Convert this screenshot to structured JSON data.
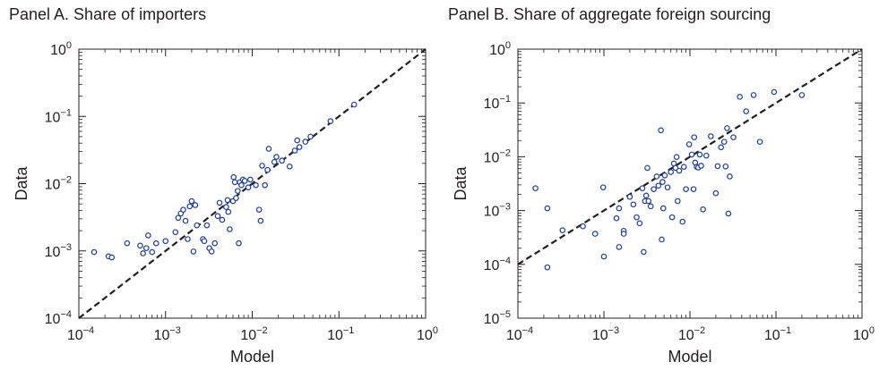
{
  "chart_data": [
    {
      "type": "scatter",
      "title": "Panel A. Share of importers",
      "xlabel": "Model",
      "ylabel": "Data",
      "xscale": "log",
      "yscale": "log",
      "xlim": [
        0.0001,
        1
      ],
      "ylim": [
        0.0001,
        1
      ],
      "xticks": [
        {
          "base": "10",
          "exp": "−4"
        },
        {
          "base": "10",
          "exp": "−3"
        },
        {
          "base": "10",
          "exp": "−2"
        },
        {
          "base": "10",
          "exp": "−1"
        },
        {
          "base": "10",
          "exp": "0"
        }
      ],
      "yticks": [
        {
          "base": "10",
          "exp": "−4"
        },
        {
          "base": "10",
          "exp": "−3"
        },
        {
          "base": "10",
          "exp": "−2"
        },
        {
          "base": "10",
          "exp": "−1"
        },
        {
          "base": "10",
          "exp": "0"
        }
      ],
      "reference_line": {
        "style": "dashed",
        "from": [
          0.0001,
          0.0001
        ],
        "to": [
          1,
          1
        ]
      },
      "marker_color": "#1f3f9a",
      "line_color": "#231f20",
      "points": [
        {
          "x": 0.00015,
          "y": 0.00096
        },
        {
          "x": 0.00022,
          "y": 0.00083
        },
        {
          "x": 0.00024,
          "y": 0.0008
        },
        {
          "x": 0.00036,
          "y": 0.0013
        },
        {
          "x": 0.00051,
          "y": 0.0012
        },
        {
          "x": 0.00055,
          "y": 0.00092
        },
        {
          "x": 0.0006,
          "y": 0.0011
        },
        {
          "x": 0.00063,
          "y": 0.0017
        },
        {
          "x": 0.0007,
          "y": 0.00096
        },
        {
          "x": 0.00078,
          "y": 0.0013
        },
        {
          "x": 0.001,
          "y": 0.0014
        },
        {
          "x": 0.0013,
          "y": 0.0019
        },
        {
          "x": 0.0014,
          "y": 0.0031
        },
        {
          "x": 0.0015,
          "y": 0.0036
        },
        {
          "x": 0.0016,
          "y": 0.0041
        },
        {
          "x": 0.0017,
          "y": 0.0028
        },
        {
          "x": 0.0018,
          "y": 0.0015
        },
        {
          "x": 0.0019,
          "y": 0.0046
        },
        {
          "x": 0.002,
          "y": 0.0055
        },
        {
          "x": 0.0021,
          "y": 0.00098
        },
        {
          "x": 0.0022,
          "y": 0.0048
        },
        {
          "x": 0.0023,
          "y": 0.0024
        },
        {
          "x": 0.0027,
          "y": 0.0015
        },
        {
          "x": 0.0028,
          "y": 0.0014
        },
        {
          "x": 0.003,
          "y": 0.0024
        },
        {
          "x": 0.0032,
          "y": 0.0011
        },
        {
          "x": 0.0034,
          "y": 0.00098
        },
        {
          "x": 0.0037,
          "y": 0.0013
        },
        {
          "x": 0.004,
          "y": 0.0033
        },
        {
          "x": 0.0042,
          "y": 0.0052
        },
        {
          "x": 0.0045,
          "y": 0.0029
        },
        {
          "x": 0.005,
          "y": 0.0045
        },
        {
          "x": 0.0052,
          "y": 0.0057
        },
        {
          "x": 0.0053,
          "y": 0.0038
        },
        {
          "x": 0.0055,
          "y": 0.0021
        },
        {
          "x": 0.006,
          "y": 0.0055
        },
        {
          "x": 0.0061,
          "y": 0.0125
        },
        {
          "x": 0.0063,
          "y": 0.0105
        },
        {
          "x": 0.0065,
          "y": 0.0061
        },
        {
          "x": 0.0068,
          "y": 0.0078
        },
        {
          "x": 0.007,
          "y": 0.0013
        },
        {
          "x": 0.0072,
          "y": 0.0105
        },
        {
          "x": 0.0075,
          "y": 0.0095
        },
        {
          "x": 0.0078,
          "y": 0.0115
        },
        {
          "x": 0.0082,
          "y": 0.011
        },
        {
          "x": 0.009,
          "y": 0.0088
        },
        {
          "x": 0.0095,
          "y": 0.0115
        },
        {
          "x": 0.011,
          "y": 0.0095
        },
        {
          "x": 0.012,
          "y": 0.0041
        },
        {
          "x": 0.0125,
          "y": 0.0028
        },
        {
          "x": 0.013,
          "y": 0.0185
        },
        {
          "x": 0.014,
          "y": 0.0095
        },
        {
          "x": 0.015,
          "y": 0.016
        },
        {
          "x": 0.0155,
          "y": 0.033
        },
        {
          "x": 0.018,
          "y": 0.021
        },
        {
          "x": 0.019,
          "y": 0.025
        },
        {
          "x": 0.022,
          "y": 0.022
        },
        {
          "x": 0.027,
          "y": 0.018
        },
        {
          "x": 0.031,
          "y": 0.031
        },
        {
          "x": 0.033,
          "y": 0.044
        },
        {
          "x": 0.035,
          "y": 0.035
        },
        {
          "x": 0.041,
          "y": 0.042
        },
        {
          "x": 0.047,
          "y": 0.05
        },
        {
          "x": 0.08,
          "y": 0.085
        },
        {
          "x": 0.15,
          "y": 0.15
        }
      ]
    },
    {
      "type": "scatter",
      "title": "Panel B. Share of aggregate foreign sourcing",
      "xlabel": "Model",
      "ylabel": "Data",
      "xscale": "log",
      "yscale": "log",
      "xlim": [
        0.0001,
        1
      ],
      "ylim": [
        1e-05,
        1
      ],
      "xticks": [
        {
          "base": "10",
          "exp": "−4"
        },
        {
          "base": "10",
          "exp": "−3"
        },
        {
          "base": "10",
          "exp": "−2"
        },
        {
          "base": "10",
          "exp": "−1"
        },
        {
          "base": "10",
          "exp": "0"
        }
      ],
      "yticks": [
        {
          "base": "10",
          "exp": "−5"
        },
        {
          "base": "10",
          "exp": "−4"
        },
        {
          "base": "10",
          "exp": "−3"
        },
        {
          "base": "10",
          "exp": "−2"
        },
        {
          "base": "10",
          "exp": "−1"
        },
        {
          "base": "10",
          "exp": "0"
        }
      ],
      "reference_line": {
        "style": "dashed",
        "from": [
          0.0001,
          0.0001
        ],
        "to": [
          1,
          1
        ]
      },
      "marker_color": "#1f3f9a",
      "line_color": "#231f20",
      "points": [
        {
          "x": 0.00016,
          "y": 0.0026
        },
        {
          "x": 0.00022,
          "y": 0.0011
        },
        {
          "x": 0.00022,
          "y": 8.8e-05
        },
        {
          "x": 0.00033,
          "y": 0.00043
        },
        {
          "x": 0.00057,
          "y": 0.00051
        },
        {
          "x": 0.00079,
          "y": 0.00037
        },
        {
          "x": 0.00098,
          "y": 0.0027
        },
        {
          "x": 0.001,
          "y": 0.00014
        },
        {
          "x": 0.0014,
          "y": 0.00072
        },
        {
          "x": 0.0015,
          "y": 0.0011
        },
        {
          "x": 0.0015,
          "y": 0.00021
        },
        {
          "x": 0.0017,
          "y": 0.00042
        },
        {
          "x": 0.0017,
          "y": 0.00037
        },
        {
          "x": 0.002,
          "y": 0.0018
        },
        {
          "x": 0.0022,
          "y": 0.0013
        },
        {
          "x": 0.0024,
          "y": 0.00075
        },
        {
          "x": 0.0026,
          "y": 0.00058
        },
        {
          "x": 0.0028,
          "y": 0.0026
        },
        {
          "x": 0.0029,
          "y": 0.00017
        },
        {
          "x": 0.003,
          "y": 0.0015
        },
        {
          "x": 0.0031,
          "y": 0.0019
        },
        {
          "x": 0.0032,
          "y": 0.0062
        },
        {
          "x": 0.0033,
          "y": 0.0015
        },
        {
          "x": 0.0035,
          "y": 0.0012
        },
        {
          "x": 0.0038,
          "y": 0.0025
        },
        {
          "x": 0.0041,
          "y": 0.0043
        },
        {
          "x": 0.0043,
          "y": 0.0029
        },
        {
          "x": 0.0046,
          "y": 0.031
        },
        {
          "x": 0.0047,
          "y": 0.00029
        },
        {
          "x": 0.0048,
          "y": 0.0034
        },
        {
          "x": 0.0049,
          "y": 0.0011
        },
        {
          "x": 0.0051,
          "y": 0.0045
        },
        {
          "x": 0.0055,
          "y": 0.0027
        },
        {
          "x": 0.006,
          "y": 0.0052
        },
        {
          "x": 0.0062,
          "y": 0.00075
        },
        {
          "x": 0.0065,
          "y": 0.0075
        },
        {
          "x": 0.0068,
          "y": 0.0062
        },
        {
          "x": 0.007,
          "y": 0.0099
        },
        {
          "x": 0.0072,
          "y": 0.0015
        },
        {
          "x": 0.0075,
          "y": 0.0055
        },
        {
          "x": 0.0082,
          "y": 0.00062
        },
        {
          "x": 0.0085,
          "y": 0.0065
        },
        {
          "x": 0.009,
          "y": 0.0025
        },
        {
          "x": 0.0098,
          "y": 0.017
        },
        {
          "x": 0.0105,
          "y": 0.011
        },
        {
          "x": 0.011,
          "y": 0.0025
        },
        {
          "x": 0.0112,
          "y": 0.023
        },
        {
          "x": 0.0115,
          "y": 0.0078
        },
        {
          "x": 0.012,
          "y": 0.0065
        },
        {
          "x": 0.0125,
          "y": 0.0063
        },
        {
          "x": 0.013,
          "y": 0.011
        },
        {
          "x": 0.0135,
          "y": 0.0068
        },
        {
          "x": 0.0142,
          "y": 0.00105
        },
        {
          "x": 0.0155,
          "y": 0.0105
        },
        {
          "x": 0.0175,
          "y": 0.024
        },
        {
          "x": 0.02,
          "y": 0.0021
        },
        {
          "x": 0.021,
          "y": 0.0067
        },
        {
          "x": 0.023,
          "y": 0.015
        },
        {
          "x": 0.025,
          "y": 0.019
        },
        {
          "x": 0.026,
          "y": 0.0066
        },
        {
          "x": 0.027,
          "y": 0.034
        },
        {
          "x": 0.028,
          "y": 0.00088
        },
        {
          "x": 0.029,
          "y": 0.0043
        },
        {
          "x": 0.032,
          "y": 0.023
        },
        {
          "x": 0.038,
          "y": 0.13
        },
        {
          "x": 0.045,
          "y": 0.07
        },
        {
          "x": 0.055,
          "y": 0.14
        },
        {
          "x": 0.065,
          "y": 0.019
        },
        {
          "x": 0.095,
          "y": 0.16
        },
        {
          "x": 0.2,
          "y": 0.14
        }
      ]
    }
  ]
}
